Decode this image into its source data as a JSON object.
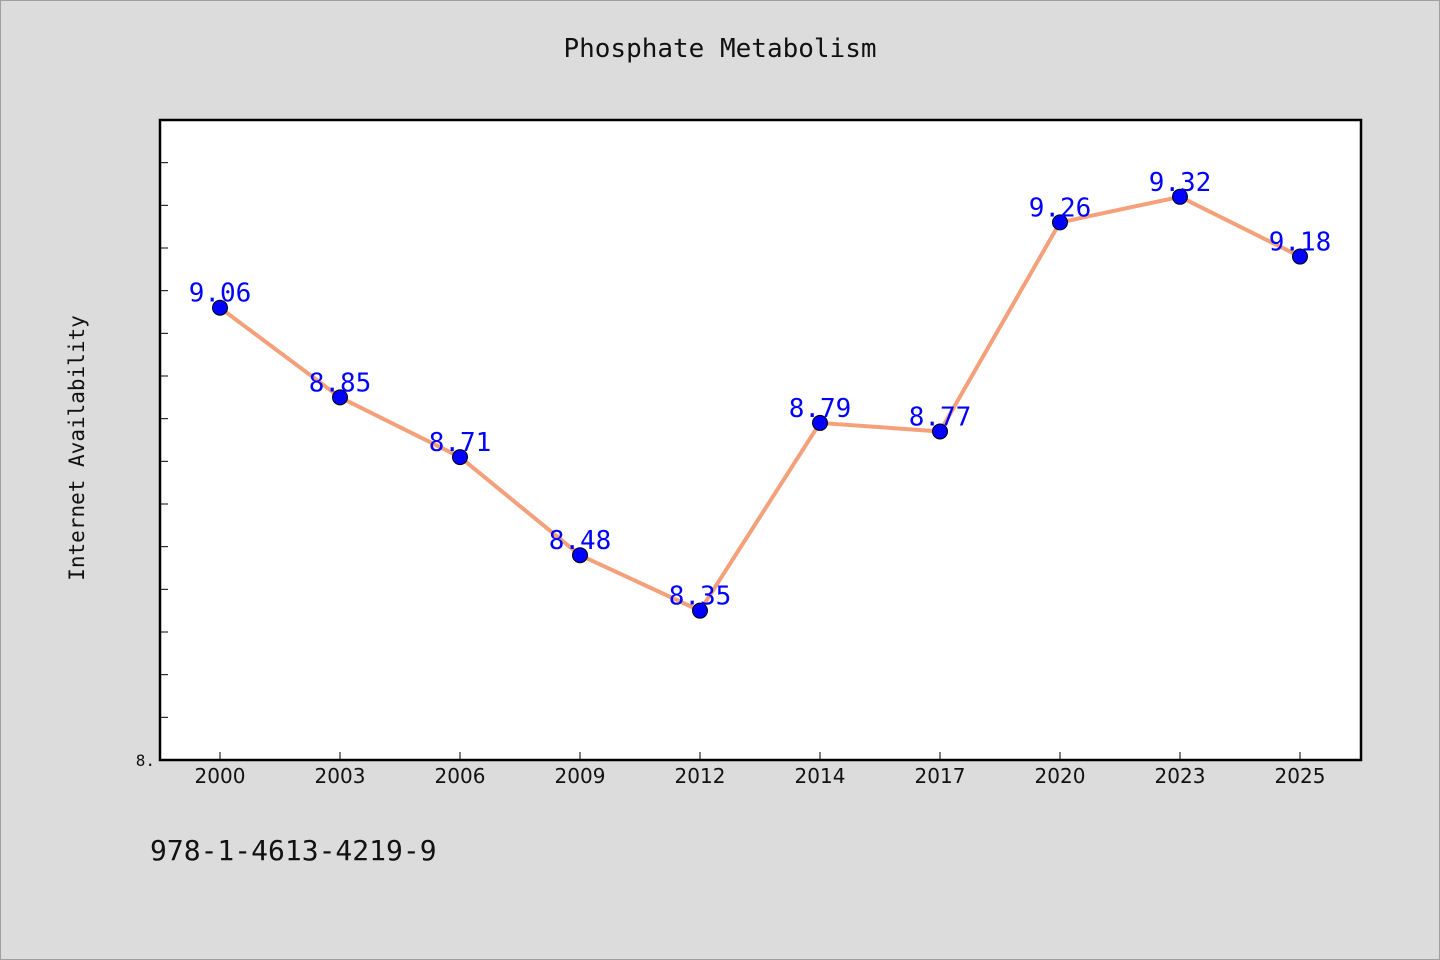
{
  "chart_data": {
    "type": "line",
    "title": "Phosphate Metabolism",
    "xlabel": "",
    "ylabel": "Internet Availability",
    "categories": [
      "2000",
      "2003",
      "2006",
      "2009",
      "2012",
      "2014",
      "2017",
      "2020",
      "2023",
      "2025"
    ],
    "series": [
      {
        "values": [
          9.06,
          8.85,
          8.71,
          8.48,
          8.35,
          8.79,
          8.77,
          9.26,
          9.32,
          9.18
        ],
        "value_labels": [
          "9.06",
          "8.85",
          "8.71",
          "8.48",
          "8.35",
          "8.79",
          "8.77",
          "9.26",
          "9.32",
          "9.18"
        ],
        "line_color": "#f4a07a",
        "marker_color": "#0000ff"
      }
    ],
    "y_tick_labels": [
      "8."
    ],
    "ylim": [
      8.0,
      9.5
    ],
    "grid": false,
    "legend": "none",
    "label_color": "#0000ff"
  },
  "footer_text": "978-1-4613-4219-9"
}
